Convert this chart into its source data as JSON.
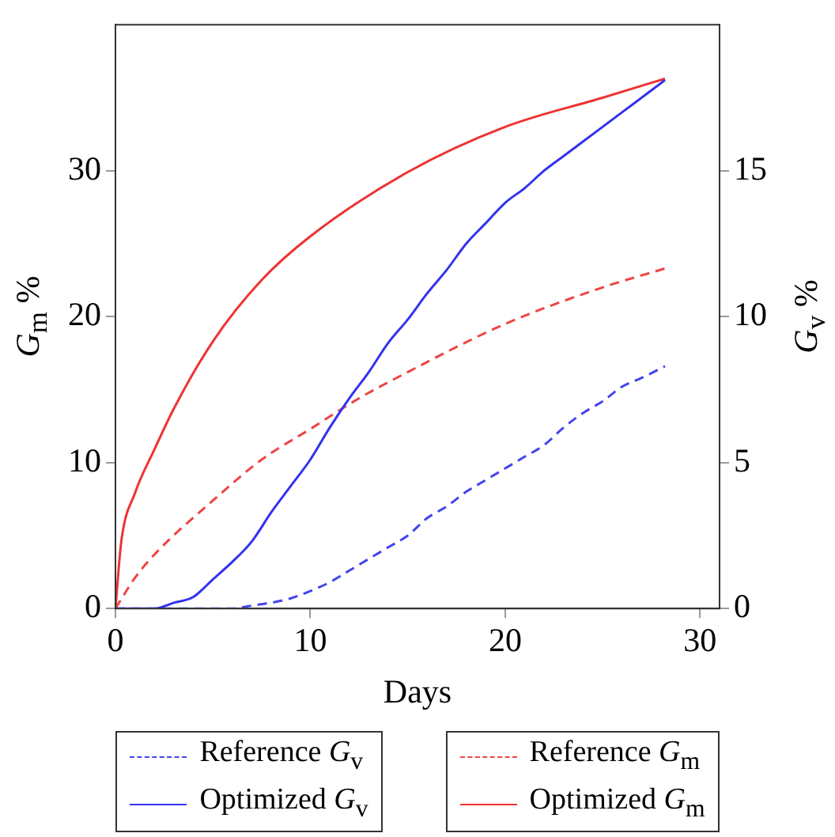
{
  "chart_data": {
    "type": "line",
    "xlabel": "Days",
    "ylabel": "G$_{m}$ %",
    "y2label": "G$_{v}$ %",
    "xlim": [
      0,
      31
    ],
    "xticks": [
      0,
      10,
      20,
      30
    ],
    "ylim": [
      0,
      40
    ],
    "yticks": [
      0,
      10,
      20,
      30
    ],
    "y2lim": [
      0,
      20
    ],
    "y2ticks": [
      0,
      5,
      10,
      15
    ],
    "grid": false,
    "legend": "bottom",
    "marker": "none",
    "series": [
      {
        "name": "Reference G$_{v}$",
        "color": "#4444ee",
        "axis": "y2",
        "line_style": "dashed",
        "x": [
          0,
          6,
          7,
          8,
          9,
          10,
          11,
          12,
          13,
          14,
          15,
          16,
          17,
          18,
          19,
          20,
          21,
          22,
          23,
          24,
          25,
          26,
          27,
          28.2
        ],
        "values": [
          0,
          0,
          0.1,
          0.2,
          0.35,
          0.6,
          0.9,
          1.3,
          1.7,
          2.1,
          2.5,
          3.1,
          3.5,
          4.0,
          4.4,
          4.8,
          5.2,
          5.6,
          6.2,
          6.7,
          7.1,
          7.6,
          7.9,
          8.3
        ]
      },
      {
        "name": "Optimized G$_{v}$",
        "color": "#3333ee",
        "axis": "y2",
        "line_style": "solid",
        "x": [
          0,
          2,
          3,
          4,
          5,
          6,
          7,
          8,
          9,
          10,
          11,
          12,
          13,
          14,
          15,
          16,
          17,
          18,
          19,
          20,
          21,
          22,
          23,
          24,
          25,
          26,
          27,
          28.2
        ],
        "values": [
          0,
          0,
          0.2,
          0.4,
          1.0,
          1.6,
          2.3,
          3.3,
          4.2,
          5.1,
          6.2,
          7.2,
          8.1,
          9.1,
          9.9,
          10.8,
          11.6,
          12.5,
          13.2,
          13.9,
          14.4,
          15.0,
          15.5,
          16.0,
          16.5,
          17.0,
          17.5,
          18.1
        ]
      },
      {
        "name": "Reference G$_{m}$",
        "color": "#ee4444",
        "axis": "y",
        "line_style": "dashed",
        "x": [
          0,
          1,
          2,
          5,
          7.5,
          10,
          12.5,
          15,
          20,
          25,
          28.2
        ],
        "values": [
          0,
          2.1,
          3.7,
          7.4,
          10.2,
          12.3,
          14.4,
          16.2,
          19.5,
          22.0,
          23.3
        ]
      },
      {
        "name": "Optimized G$_{m}$",
        "color": "#ee3333",
        "axis": "y",
        "line_style": "solid",
        "x": [
          0,
          0.3,
          1,
          2,
          3,
          5,
          7.5,
          10,
          15,
          20,
          25,
          28.2
        ],
        "values": [
          0,
          4.6,
          7.9,
          10.9,
          13.7,
          18.3,
          22.5,
          25.5,
          29.9,
          33.0,
          35.0,
          36.3
        ]
      }
    ]
  }
}
